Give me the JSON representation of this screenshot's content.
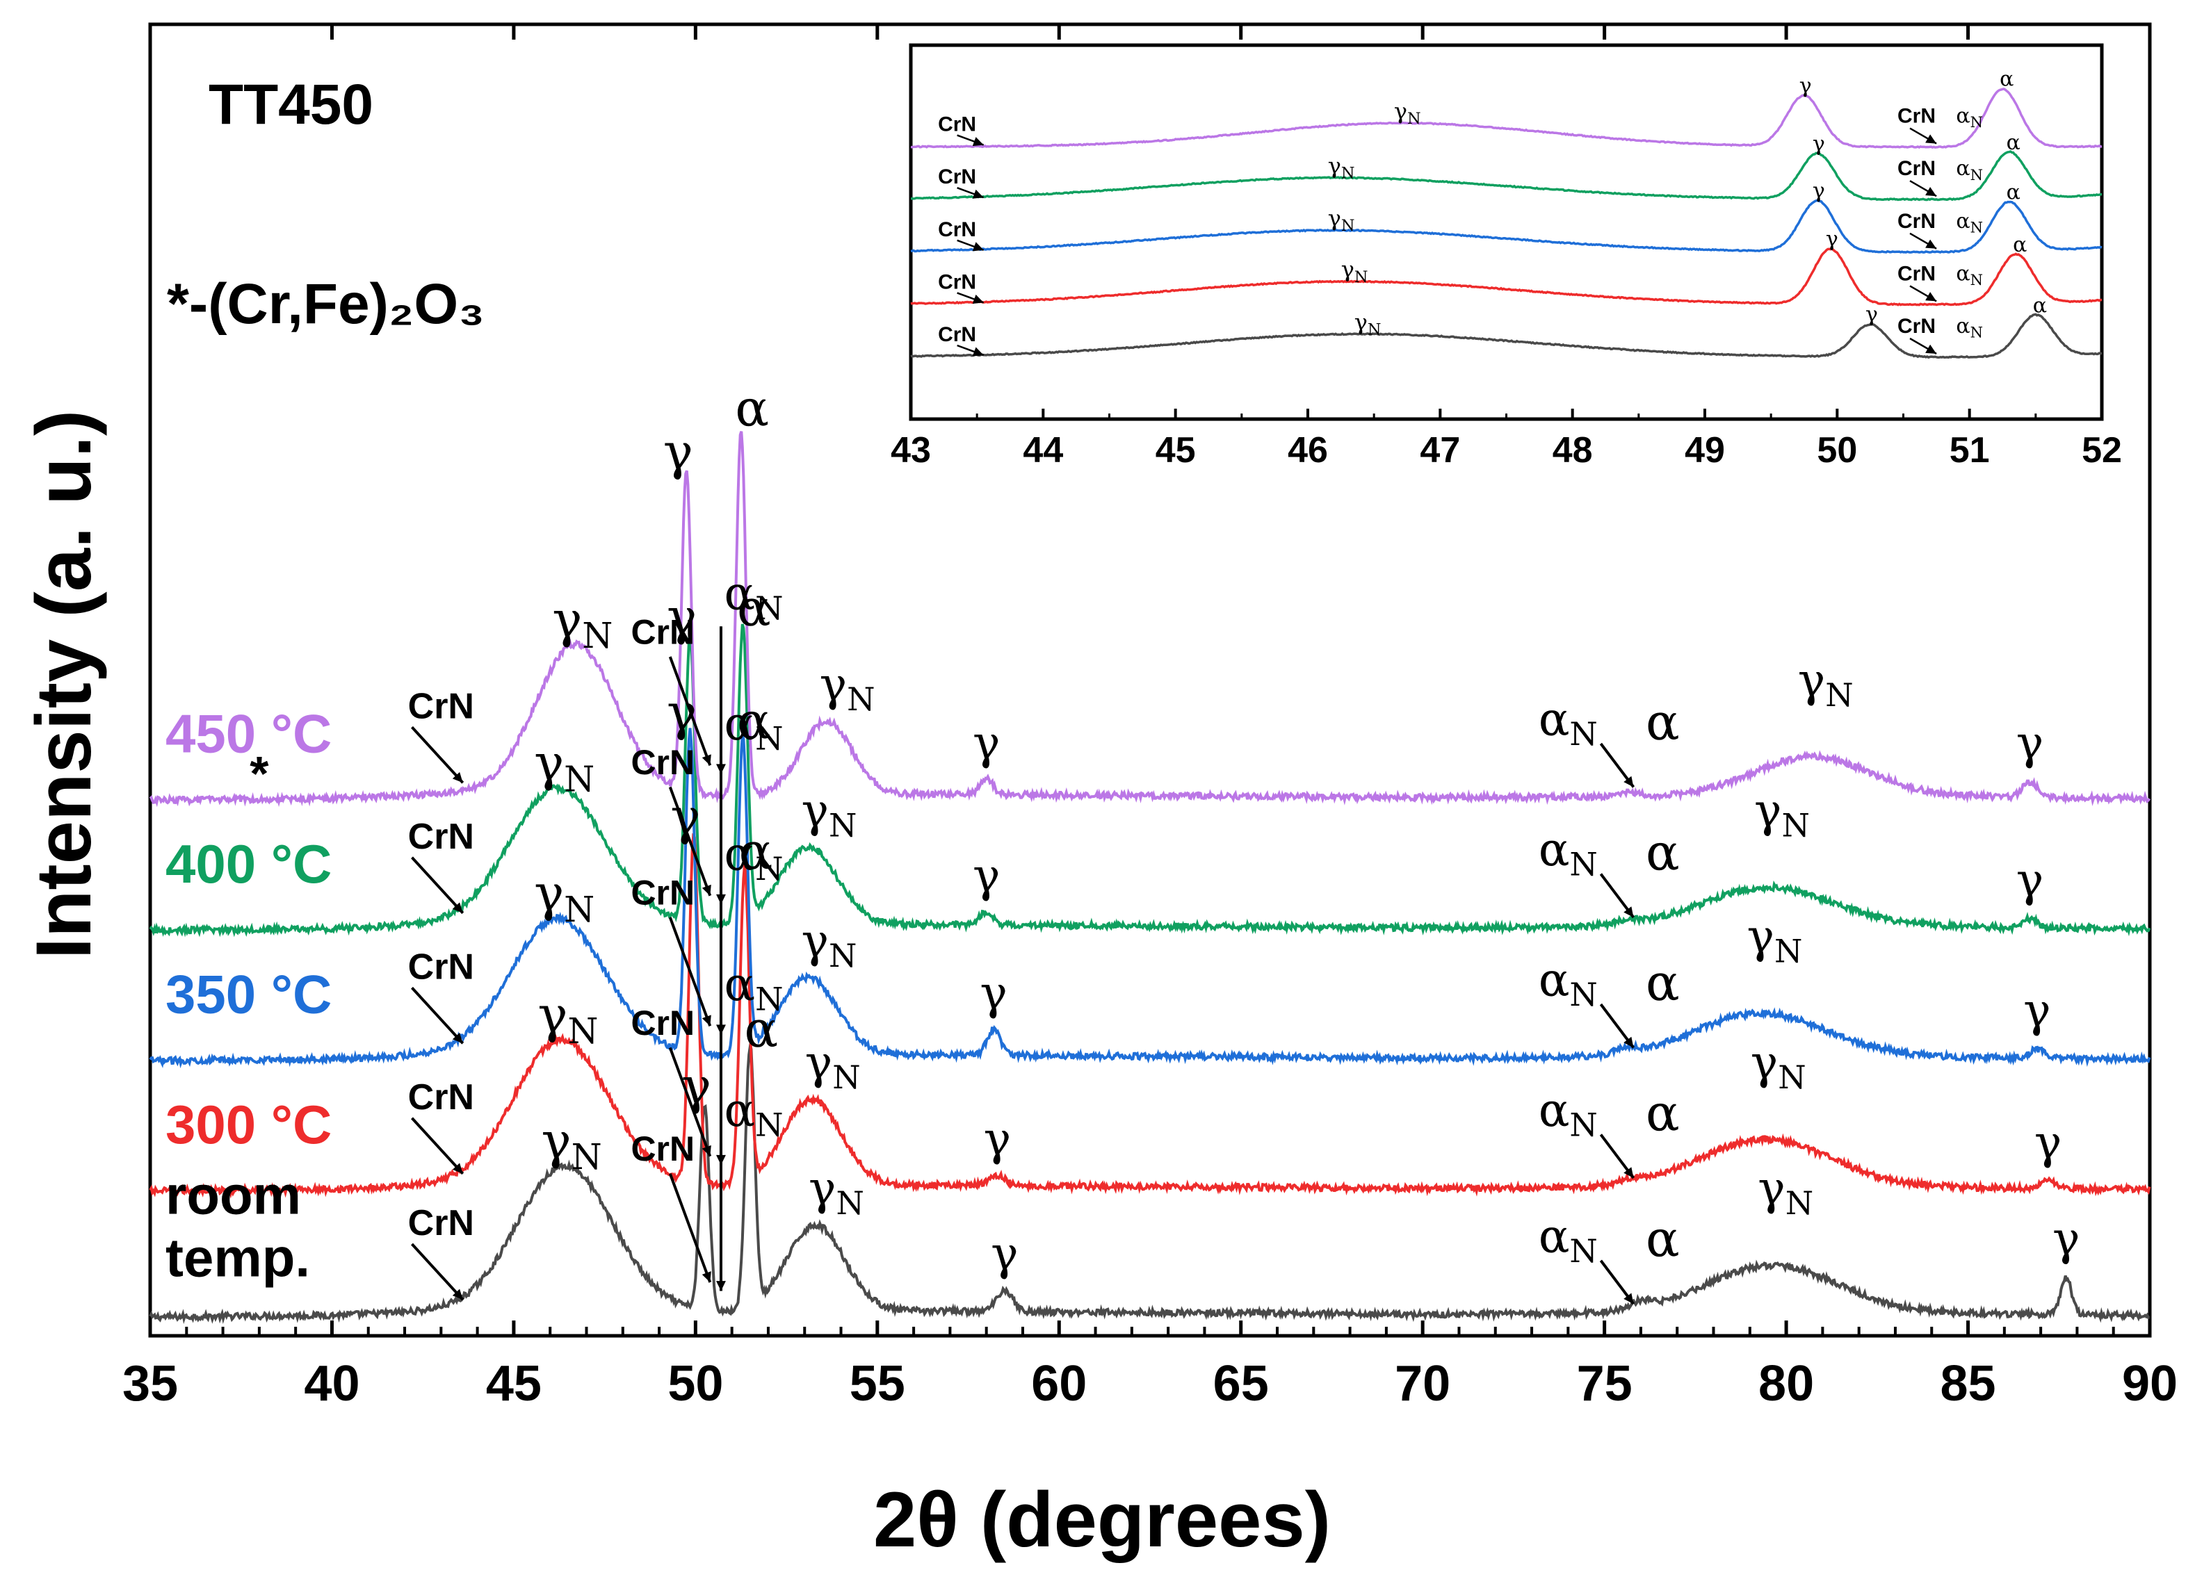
{
  "chart_data": {
    "type": "line",
    "title": "TT450",
    "legend_note": "*-(Cr,Fe)₂O₃",
    "xlabel": "2θ (degrees)",
    "ylabel": "Intensity (a. u.)",
    "xlim": [
      35,
      90
    ],
    "xticks": [
      "35",
      "40",
      "45",
      "50",
      "55",
      "60",
      "65",
      "70",
      "75",
      "80",
      "85",
      "90"
    ],
    "grid": false,
    "series": [
      {
        "name": "room temp.",
        "label_lines": [
          "room",
          "temp."
        ],
        "color": "#4a4a4a",
        "offset": 0,
        "background": [
          [
            35,
            0.0
          ],
          [
            40,
            0.02
          ],
          [
            43,
            0.07
          ],
          [
            48,
            0.1
          ],
          [
            51,
            0.05
          ],
          [
            56,
            0.07
          ],
          [
            70,
            0.03
          ],
          [
            76,
            0.04
          ],
          [
            82,
            0.05
          ],
          [
            90,
            0.02
          ]
        ],
        "peaks": [
          {
            "pos": 46.4,
            "h": 1.65,
            "w": 1.3,
            "label": "γN"
          },
          {
            "pos": 50.25,
            "h": 2.35,
            "w": 0.13,
            "label": "γ"
          },
          {
            "pos": 51.5,
            "h": 3.0,
            "w": 0.13,
            "label": "α"
          },
          {
            "pos": 53.3,
            "h": 1.0,
            "w": 0.8,
            "label": "γN"
          },
          {
            "pos": 58.5,
            "h": 0.25,
            "w": 0.22,
            "label": "γ"
          },
          {
            "pos": 76.0,
            "h": 0.08,
            "w": 0.3,
            "label": "α"
          },
          {
            "pos": 79.6,
            "h": 0.55,
            "w": 1.8,
            "label": "γN"
          },
          {
            "pos": 87.7,
            "h": 0.42,
            "w": 0.15,
            "label": "γ"
          }
        ]
      },
      {
        "name": "300 °C",
        "label_lines": [
          "300 °C"
        ],
        "color": "#ee2c2c",
        "offset": 1.45,
        "background": [
          [
            35,
            0.0
          ],
          [
            40,
            0.02
          ],
          [
            43,
            0.07
          ],
          [
            48,
            0.1
          ],
          [
            51,
            0.05
          ],
          [
            56,
            0.07
          ],
          [
            70,
            0.03
          ],
          [
            76,
            0.04
          ],
          [
            82,
            0.05
          ],
          [
            90,
            0.02
          ]
        ],
        "peaks": [
          {
            "pos": 46.3,
            "h": 1.65,
            "w": 1.3,
            "label": "γN"
          },
          {
            "pos": 49.95,
            "h": 4.0,
            "w": 0.13,
            "label": "γ"
          },
          {
            "pos": 51.35,
            "h": 3.6,
            "w": 0.13,
            "label": "α"
          },
          {
            "pos": 53.2,
            "h": 1.0,
            "w": 0.8,
            "label": "γN"
          },
          {
            "pos": 58.3,
            "h": 0.12,
            "w": 0.22,
            "label": "γ"
          },
          {
            "pos": 75.8,
            "h": 0.05,
            "w": 0.3,
            "label": "α"
          },
          {
            "pos": 79.4,
            "h": 0.55,
            "w": 1.8,
            "label": "γN"
          },
          {
            "pos": 87.2,
            "h": 0.08,
            "w": 0.2,
            "label": "γ"
          }
        ]
      },
      {
        "name": "350 °C",
        "label_lines": [
          "350 °C"
        ],
        "color": "#1f6fd8",
        "offset": 2.95,
        "background": [
          [
            35,
            0.0
          ],
          [
            40,
            0.02
          ],
          [
            43,
            0.07
          ],
          [
            48,
            0.1
          ],
          [
            51,
            0.05
          ],
          [
            56,
            0.07
          ],
          [
            70,
            0.03
          ],
          [
            76,
            0.04
          ],
          [
            82,
            0.05
          ],
          [
            90,
            0.02
          ]
        ],
        "peaks": [
          {
            "pos": 46.2,
            "h": 1.55,
            "w": 1.3,
            "label": "γN"
          },
          {
            "pos": 49.85,
            "h": 3.7,
            "w": 0.13,
            "label": "γ"
          },
          {
            "pos": 51.3,
            "h": 3.6,
            "w": 0.13,
            "label": "α"
          },
          {
            "pos": 53.1,
            "h": 0.9,
            "w": 0.8,
            "label": "γN"
          },
          {
            "pos": 58.2,
            "h": 0.3,
            "w": 0.18,
            "label": "γ"
          },
          {
            "pos": 75.6,
            "h": 0.05,
            "w": 0.3,
            "label": "α"
          },
          {
            "pos": 79.3,
            "h": 0.5,
            "w": 1.8,
            "label": "γN"
          },
          {
            "pos": 86.9,
            "h": 0.1,
            "w": 0.2,
            "label": "γ"
          }
        ]
      },
      {
        "name": "400 °C",
        "label_lines": [
          "400 °C"
        ],
        "color": "#10a060",
        "offset": 4.45,
        "background": [
          [
            35,
            0.0
          ],
          [
            40,
            0.02
          ],
          [
            43,
            0.07
          ],
          [
            48,
            0.1
          ],
          [
            51,
            0.05
          ],
          [
            56,
            0.07
          ],
          [
            70,
            0.03
          ],
          [
            76,
            0.04
          ],
          [
            82,
            0.05
          ],
          [
            90,
            0.02
          ]
        ],
        "peaks": [
          {
            "pos": 46.2,
            "h": 1.55,
            "w": 1.3,
            "label": "γN"
          },
          {
            "pos": 49.85,
            "h": 3.3,
            "w": 0.13,
            "label": "γ"
          },
          {
            "pos": 51.3,
            "h": 3.4,
            "w": 0.13,
            "label": "α"
          },
          {
            "pos": 53.1,
            "h": 0.9,
            "w": 0.8,
            "label": "γN"
          },
          {
            "pos": 58.0,
            "h": 0.15,
            "w": 0.18,
            "label": "γ"
          },
          {
            "pos": 75.6,
            "h": 0.05,
            "w": 0.3,
            "label": "α"
          },
          {
            "pos": 79.5,
            "h": 0.45,
            "w": 1.8,
            "label": "γN"
          },
          {
            "pos": 86.7,
            "h": 0.1,
            "w": 0.2,
            "label": "γ"
          }
        ]
      },
      {
        "name": "450 °C",
        "label_lines": [
          "450 °C"
        ],
        "color": "#bb77e6",
        "offset": 5.95,
        "background": [
          [
            35,
            0.0
          ],
          [
            40,
            0.02
          ],
          [
            43,
            0.07
          ],
          [
            48,
            0.1
          ],
          [
            51,
            0.05
          ],
          [
            56,
            0.07
          ],
          [
            70,
            0.03
          ],
          [
            76,
            0.04
          ],
          [
            82,
            0.05
          ],
          [
            90,
            0.02
          ]
        ],
        "peaks": [
          {
            "pos": 46.7,
            "h": 1.7,
            "w": 1.1,
            "label": "γN"
          },
          {
            "pos": 49.75,
            "h": 3.7,
            "w": 0.13,
            "label": "γ"
          },
          {
            "pos": 51.25,
            "h": 4.2,
            "w": 0.13,
            "label": "α"
          },
          {
            "pos": 53.6,
            "h": 0.85,
            "w": 0.7,
            "label": "γN"
          },
          {
            "pos": 58.0,
            "h": 0.18,
            "w": 0.18,
            "label": "γ"
          },
          {
            "pos": 75.6,
            "h": 0.05,
            "w": 0.3,
            "label": "α"
          },
          {
            "pos": 80.7,
            "h": 0.45,
            "w": 1.6,
            "label": "γN"
          },
          {
            "pos": 86.7,
            "h": 0.18,
            "w": 0.2,
            "label": "γ"
          }
        ]
      }
    ],
    "annotations": {
      "crn": "CrN",
      "gamma": "γ",
      "alpha": "α",
      "subscript_n": "N",
      "star": "*"
    },
    "inset": {
      "xlim": [
        43,
        52
      ],
      "xticks": [
        "43",
        "44",
        "45",
        "46",
        "47",
        "48",
        "49",
        "50",
        "51",
        "52"
      ],
      "series_order": [
        "room temp.",
        "300 °C",
        "350 °C",
        "400 °C",
        "450 °C"
      ]
    }
  }
}
